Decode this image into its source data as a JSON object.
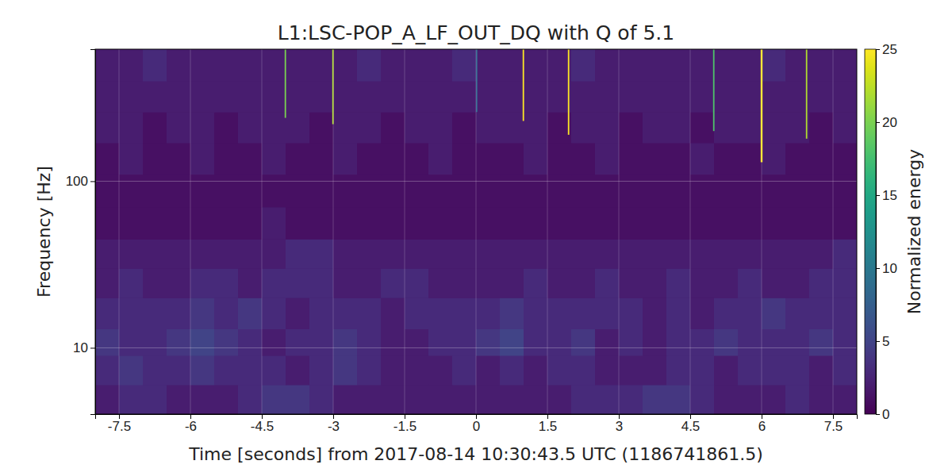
{
  "chart_data": {
    "type": "heatmap",
    "title": "L1:LSC-POP_A_LF_OUT_DQ with Q of 5.1",
    "x_label": "Time [seconds] from 2017-08-14 10:30:43.5 UTC (1186741861.5)",
    "y_label": "Frequency [Hz]",
    "xlim": [
      -8,
      8
    ],
    "ylim": [
      4,
      620
    ],
    "xticks": [
      -7.5,
      -6,
      -4.5,
      -3,
      -1.5,
      0,
      1.5,
      3,
      4.5,
      6,
      7.5
    ],
    "yticks": [
      10,
      100
    ],
    "log": "y",
    "grid": true,
    "xbins": [
      -8,
      -7.5,
      -7,
      -6.5,
      -6,
      -5.5,
      -5,
      -4.5,
      -4,
      -3.5,
      -3,
      -2.5,
      -2,
      -1.5,
      -1,
      -0.5,
      0,
      0.5,
      1,
      1.5,
      2,
      2.5,
      3,
      3.5,
      4,
      4.5,
      5,
      5.5,
      6,
      6.5,
      7,
      7.5,
      8
    ],
    "ybins": [
      4,
      6,
      9,
      13,
      20,
      30,
      45,
      70,
      110,
      170,
      260,
      400,
      620
    ],
    "z": [
      [
        2,
        3,
        3,
        2,
        2,
        2,
        3,
        4,
        4,
        3,
        2,
        2,
        2,
        2,
        2,
        2,
        2,
        2,
        2,
        2,
        3,
        3,
        3,
        4,
        4,
        3,
        2,
        2,
        2,
        3,
        2,
        2
      ],
      [
        3,
        4,
        3,
        3,
        4,
        3,
        3,
        3,
        2,
        3,
        4,
        3,
        2,
        2,
        2,
        3,
        2,
        3,
        2,
        3,
        3,
        2,
        2,
        2,
        3,
        3,
        2,
        3,
        3,
        3,
        2,
        3
      ],
      [
        4,
        3,
        3,
        4,
        5,
        4,
        3,
        2,
        3,
        3,
        4,
        3,
        2,
        2,
        3,
        3,
        4,
        5,
        3,
        3,
        4,
        2,
        3,
        2,
        3,
        3,
        4,
        3,
        3,
        3,
        4,
        3
      ],
      [
        3,
        3,
        3,
        3,
        4,
        3,
        4,
        3,
        2,
        3,
        3,
        3,
        2,
        3,
        3,
        3,
        3,
        4,
        3,
        3,
        3,
        3,
        3,
        2,
        3,
        2,
        3,
        3,
        4,
        3,
        3,
        3
      ],
      [
        2,
        3,
        2,
        2,
        3,
        3,
        2,
        3,
        3,
        3,
        2,
        2,
        3,
        3,
        2,
        2,
        2,
        2,
        3,
        2,
        2,
        3,
        2,
        2,
        3,
        2,
        2,
        3,
        2,
        2,
        3,
        3
      ],
      [
        2,
        2,
        2,
        2,
        2,
        2,
        2,
        2,
        3,
        3,
        2,
        2,
        2,
        2,
        2,
        2,
        2,
        2,
        2,
        2,
        2,
        2,
        2,
        2,
        2,
        2,
        2,
        2,
        2,
        2,
        2,
        3
      ],
      [
        1,
        1,
        1,
        1,
        1,
        1,
        1,
        2,
        1,
        1,
        1,
        1,
        1,
        1,
        1,
        1,
        1,
        1,
        1,
        1,
        1,
        1,
        1,
        1,
        1,
        1,
        1,
        1,
        1,
        1,
        1,
        1
      ],
      [
        1,
        1,
        1,
        1,
        1,
        1,
        1,
        1,
        1,
        1,
        1,
        1,
        1,
        1,
        1,
        1,
        1,
        1,
        1,
        1,
        1,
        1,
        1,
        1,
        1,
        1,
        1,
        1,
        1,
        1,
        1,
        1
      ],
      [
        1,
        2,
        1,
        1,
        2,
        1,
        1,
        2,
        1,
        1,
        2,
        1,
        1,
        1,
        2,
        1,
        1,
        1,
        2,
        1,
        1,
        2,
        1,
        1,
        1,
        2,
        1,
        1,
        2,
        1,
        1,
        1
      ],
      [
        2,
        2,
        1,
        2,
        2,
        1,
        2,
        2,
        2,
        1,
        2,
        2,
        1,
        2,
        2,
        1,
        2,
        2,
        2,
        1,
        2,
        2,
        1,
        2,
        2,
        1,
        2,
        2,
        2,
        2,
        1,
        2
      ],
      [
        2,
        2,
        2,
        2,
        2,
        2,
        2,
        2,
        2,
        2,
        2,
        2,
        2,
        2,
        2,
        2,
        2,
        2,
        2,
        2,
        2,
        2,
        2,
        2,
        2,
        2,
        2,
        2,
        2,
        2,
        2,
        2
      ],
      [
        2,
        2,
        3,
        2,
        2,
        2,
        2,
        2,
        2,
        2,
        2,
        3,
        2,
        2,
        2,
        3,
        2,
        2,
        2,
        2,
        3,
        2,
        2,
        2,
        2,
        2,
        2,
        2,
        3,
        2,
        2,
        2
      ]
    ],
    "spikes": [
      {
        "x": [
          -4.02,
          -3.99
        ],
        "y": [
          240,
          620
        ],
        "value": 20
      },
      {
        "x": [
          -3.02,
          -2.99
        ],
        "y": [
          220,
          620
        ],
        "value": 22
      },
      {
        "x": [
          0.0,
          0.03
        ],
        "y": [
          260,
          620
        ],
        "value": 8
      },
      {
        "x": [
          0.98,
          1.01
        ],
        "y": [
          230,
          620
        ],
        "value": 25
      },
      {
        "x": [
          1.93,
          1.96
        ],
        "y": [
          190,
          620
        ],
        "value": 25
      },
      {
        "x": [
          4.98,
          5.01
        ],
        "y": [
          200,
          620
        ],
        "value": 18
      },
      {
        "x": [
          5.98,
          6.02
        ],
        "y": [
          130,
          620
        ],
        "value": 25
      },
      {
        "x": [
          6.93,
          6.96
        ],
        "y": [
          180,
          620
        ],
        "value": 22
      }
    ],
    "color_label": "Normalized energy",
    "color_range": [
      0,
      25
    ],
    "color_ticks": [
      0,
      5,
      10,
      15,
      20,
      25
    ]
  }
}
